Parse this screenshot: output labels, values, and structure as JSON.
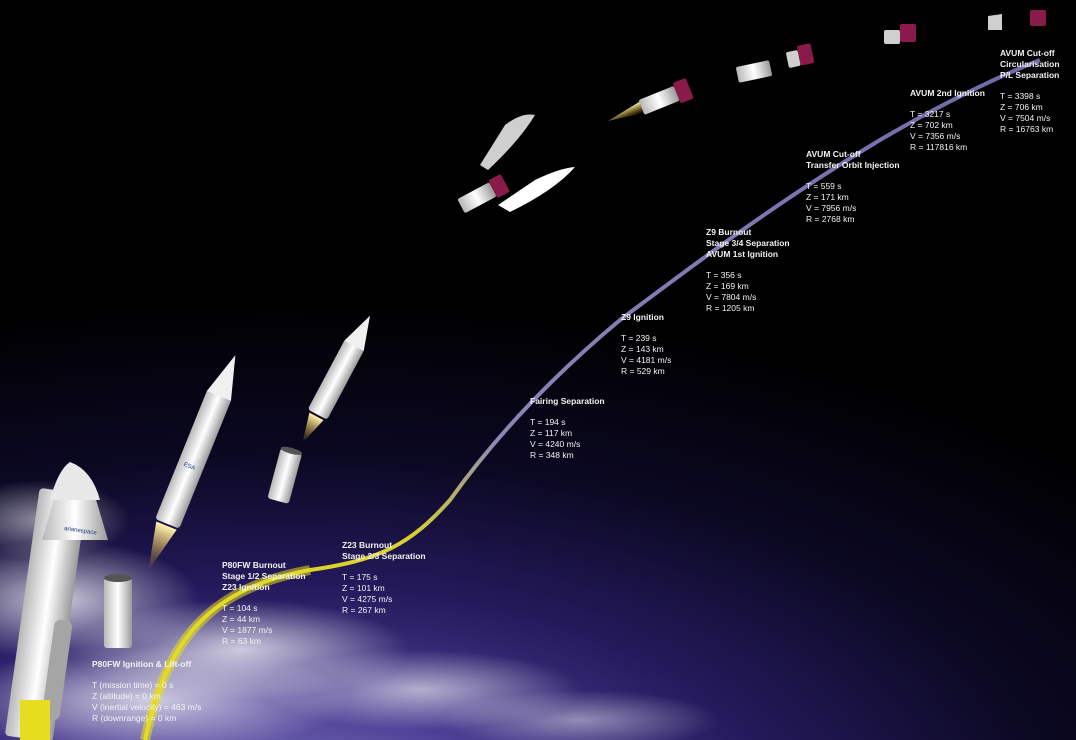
{
  "events": [
    {
      "id": "liftoff",
      "title": [
        "P80FW Ignition & Lift-off"
      ],
      "values": [
        "T (mission time) = 0 s",
        "Z (altitude) = 0 km",
        "V (inertial velocity) = 463 m/s",
        "R (downrange) = 0 km"
      ]
    },
    {
      "id": "p80-burnout",
      "title": [
        "P80FW Burnout",
        "Stage 1/2 Separation",
        "Z23 Ignition"
      ],
      "values": [
        "T = 104 s",
        "Z = 44 km",
        "V = 1877 m/s",
        "R = 63 km"
      ]
    },
    {
      "id": "z23-burnout",
      "title": [
        "Z23 Burnout",
        "Stage 2/3 Separation"
      ],
      "values": [
        "T = 175 s",
        "Z = 101 km",
        "V = 4275 m/s",
        "R = 267 km"
      ]
    },
    {
      "id": "fairing",
      "title": [
        "Fairing Separation"
      ],
      "values": [
        "T = 194 s",
        "Z = 117 km",
        "V = 4240 m/s",
        "R = 348 km"
      ]
    },
    {
      "id": "z9-ignition",
      "title": [
        "Z9 Ignition"
      ],
      "values": [
        "T = 239 s",
        "Z = 143 km",
        "V = 4181 m/s",
        "R = 529 km"
      ]
    },
    {
      "id": "z9-burnout",
      "title": [
        "Z9 Burnout",
        "Stage 3/4 Separation",
        "AVUM 1st Ignition"
      ],
      "values": [
        "T = 356 s",
        "Z = 169 km",
        "V = 7804 m/s",
        "R = 1205 km"
      ]
    },
    {
      "id": "avum-cutoff-1",
      "title": [
        "AVUM Cut-off",
        "Transfer Orbit Injection"
      ],
      "values": [
        "T = 559 s",
        "Z = 171 km",
        "V = 7956 m/s",
        "R = 2768 km"
      ]
    },
    {
      "id": "avum-2nd-ignition",
      "title": [
        "AVUM 2nd Ignition"
      ],
      "values": [
        "T = 3217 s",
        "Z = 702 km",
        "V = 7356 m/s",
        "R = 117816 km"
      ]
    },
    {
      "id": "avum-cutoff-2",
      "title": [
        "AVUM Cut-off",
        "Circularisation",
        "P/L Separation"
      ],
      "values": [
        "T = 3398 s",
        "Z = 706 km",
        "V = 7504 m/s",
        "R = 16763 km"
      ]
    }
  ],
  "rocket_logo_text": [
    "arianespace",
    "ESA"
  ],
  "colors": {
    "trajectory_low": "#e6dc20",
    "trajectory_high": "#6e6aa8",
    "label_text": "#f2f2f2",
    "space": "#000000",
    "atmosphere": "#4d3f95",
    "avum_module": "#8a1a4a"
  }
}
